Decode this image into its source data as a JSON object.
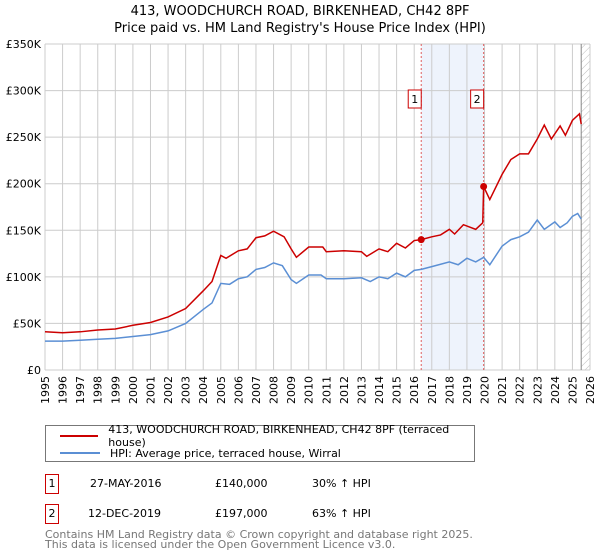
{
  "title": "413, WOODCHURCH ROAD, BIRKENHEAD, CH42 8PF",
  "subtitle": "Price paid vs. HM Land Registry's House Price Index (HPI)",
  "colors": {
    "property": "#cc0000",
    "hpi": "#5b8fd4",
    "shade": "#eef3fc"
  },
  "chart_data": {
    "type": "line",
    "title": "413, WOODCHURCH ROAD, BIRKENHEAD, CH42 8PF - Price paid vs. HM Land Registry's House Price Index (HPI)",
    "xlim": [
      1995,
      2026
    ],
    "ylim": [
      0,
      350000
    ],
    "xticks": [
      "1995",
      "1996",
      "1997",
      "1998",
      "1999",
      "2000",
      "2001",
      "2002",
      "2003",
      "2004",
      "2005",
      "2006",
      "2007",
      "2008",
      "2009",
      "2010",
      "2011",
      "2012",
      "2013",
      "2014",
      "2015",
      "2016",
      "2017",
      "2018",
      "2019",
      "2020",
      "2021",
      "2022",
      "2023",
      "2024",
      "2025",
      "2026"
    ],
    "yticks": [
      {
        "v": 0,
        "l": "£0"
      },
      {
        "v": 50000,
        "l": "£50K"
      },
      {
        "v": 100000,
        "l": "£100K"
      },
      {
        "v": 150000,
        "l": "£150K"
      },
      {
        "v": 200000,
        "l": "£200K"
      },
      {
        "v": 250000,
        "l": "£250K"
      },
      {
        "v": 300000,
        "l": "£300K"
      },
      {
        "v": 350000,
        "l": "£350K"
      }
    ],
    "grid": true,
    "series": [
      {
        "name": "413, WOODCHURCH ROAD, BIRKENHEAD, CH42 8PF (terraced house)",
        "color": "#cc0000",
        "x": [
          1995,
          1996,
          1997,
          1998,
          1999,
          2000,
          2001,
          2002,
          2003,
          2004,
          2004.5,
          2005,
          2005.3,
          2006,
          2006.5,
          2007,
          2007.5,
          2008,
          2008.6,
          2009,
          2009.3,
          2010,
          2010.8,
          2011,
          2012,
          2013,
          2013.3,
          2014,
          2014.5,
          2015,
          2015.5,
          2016,
          2016.4,
          2017,
          2017.5,
          2018,
          2018.3,
          2018.8,
          2019.5,
          2019.9,
          2019.95,
          2020.3,
          2021,
          2021.5,
          2022,
          2022.5,
          2023,
          2023.4,
          2023.8,
          2024.3,
          2024.6,
          2025,
          2025.4,
          2025.5
        ],
        "y": [
          41000,
          40000,
          41000,
          43000,
          44000,
          48000,
          51000,
          57000,
          66000,
          85000,
          95000,
          123000,
          120000,
          128000,
          130000,
          142000,
          144000,
          149000,
          143000,
          130000,
          121000,
          132000,
          132000,
          127000,
          128000,
          127000,
          122000,
          130000,
          127000,
          136000,
          131000,
          139000,
          140000,
          143000,
          145000,
          151000,
          146000,
          156000,
          151000,
          158000,
          197000,
          183000,
          210000,
          226000,
          232000,
          232000,
          248000,
          263000,
          248000,
          262000,
          252000,
          268000,
          275000,
          264000
        ]
      },
      {
        "name": "HPI: Average price, terraced house, Wirral",
        "color": "#5b8fd4",
        "x": [
          1995,
          1996,
          1997,
          1998,
          1999,
          2000,
          2001,
          2002,
          2003,
          2004,
          2004.5,
          2005,
          2005.5,
          2006,
          2006.5,
          2007,
          2007.5,
          2008,
          2008.5,
          2009,
          2009.3,
          2010,
          2010.7,
          2011,
          2012,
          2013,
          2013.5,
          2014,
          2014.5,
          2015,
          2015.5,
          2016,
          2016.4,
          2017,
          2018,
          2018.5,
          2019,
          2019.5,
          2019.95,
          2020.3,
          2021,
          2021.5,
          2022,
          2022.5,
          2023,
          2023.4,
          2024,
          2024.3,
          2024.7,
          2025,
          2025.3,
          2025.5
        ],
        "y": [
          31000,
          31000,
          32000,
          33000,
          34000,
          36000,
          38000,
          42000,
          50000,
          65000,
          72000,
          93000,
          92000,
          98000,
          100000,
          108000,
          110000,
          115000,
          112000,
          97000,
          93000,
          102000,
          102000,
          98000,
          98000,
          99000,
          95000,
          100000,
          98000,
          104000,
          100000,
          107000,
          108000,
          111000,
          116000,
          113000,
          120000,
          116000,
          121000,
          113000,
          133000,
          140000,
          143000,
          148000,
          161000,
          151000,
          159000,
          153000,
          158000,
          165000,
          168000,
          162000
        ]
      }
    ],
    "sales": [
      {
        "label": "1",
        "x": 2016.4,
        "y": 140000
      },
      {
        "label": "2",
        "x": 2019.95,
        "y": 197000
      }
    ],
    "shaded_range": [
      2016.4,
      2019.95
    ],
    "hatched_from": 2025.5
  },
  "legend": {
    "property": "413, WOODCHURCH ROAD, BIRKENHEAD, CH42 8PF (terraced house)",
    "hpi": "HPI: Average price, terraced house, Wirral"
  },
  "sales_table": [
    {
      "num": "1",
      "date": "27-MAY-2016",
      "price": "£140,000",
      "hpi": "30% ↑ HPI"
    },
    {
      "num": "2",
      "date": "12-DEC-2019",
      "price": "£197,000",
      "hpi": "63% ↑ HPI"
    }
  ],
  "footer": [
    "Contains HM Land Registry data © Crown copyright and database right 2025.",
    "This data is licensed under the Open Government Licence v3.0."
  ]
}
